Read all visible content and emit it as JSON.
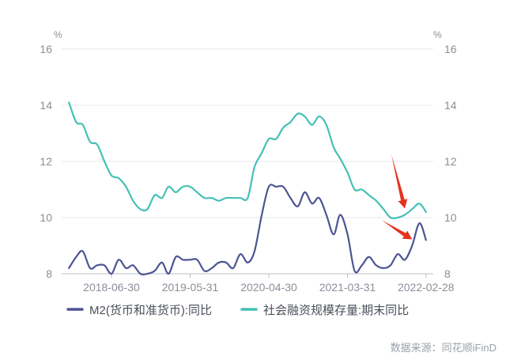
{
  "chart_data": {
    "type": "line",
    "y_unit_left": "%",
    "y_unit_right": "%",
    "ylim": [
      8,
      16
    ],
    "yticks": [
      8,
      10,
      12,
      14,
      16
    ],
    "xlim": [
      "2017-11-30",
      "2022-03-31"
    ],
    "xticks": [
      "2018-06-30",
      "2019-05-31",
      "2020-04-30",
      "2021-03-31",
      "2022-02-28"
    ],
    "grid": "horizontal",
    "legend_position": "bottom",
    "series": [
      {
        "name": "M2(货币和准货币):同比",
        "color": "#4e5594",
        "x": [
          "2017-12-31",
          "2018-01-31",
          "2018-02-28",
          "2018-03-31",
          "2018-04-30",
          "2018-05-31",
          "2018-06-30",
          "2018-07-31",
          "2018-08-31",
          "2018-09-30",
          "2018-10-31",
          "2018-11-30",
          "2018-12-31",
          "2019-01-31",
          "2019-02-28",
          "2019-03-31",
          "2019-04-30",
          "2019-05-31",
          "2019-06-30",
          "2019-07-31",
          "2019-08-31",
          "2019-09-30",
          "2019-10-31",
          "2019-11-30",
          "2019-12-31",
          "2020-01-31",
          "2020-02-29",
          "2020-03-31",
          "2020-04-30",
          "2020-05-31",
          "2020-06-30",
          "2020-07-31",
          "2020-08-31",
          "2020-09-30",
          "2020-10-31",
          "2020-11-30",
          "2020-12-31",
          "2021-01-31",
          "2021-02-28",
          "2021-03-31",
          "2021-04-30",
          "2021-05-31",
          "2021-06-30",
          "2021-07-31",
          "2021-08-31",
          "2021-09-30",
          "2021-10-31",
          "2021-11-30",
          "2021-12-31",
          "2022-01-31",
          "2022-02-28"
        ],
        "values": [
          8.2,
          8.6,
          8.8,
          8.2,
          8.3,
          8.3,
          8.0,
          8.5,
          8.2,
          8.3,
          8.0,
          8.0,
          8.1,
          8.4,
          8.0,
          8.6,
          8.5,
          8.5,
          8.5,
          8.1,
          8.2,
          8.4,
          8.4,
          8.2,
          8.7,
          8.4,
          8.8,
          10.1,
          11.1,
          11.1,
          11.1,
          10.7,
          10.4,
          10.9,
          10.5,
          10.7,
          10.1,
          9.4,
          10.1,
          9.4,
          8.1,
          8.3,
          8.6,
          8.3,
          8.2,
          8.3,
          8.7,
          8.5,
          9.0,
          9.8,
          9.2
        ]
      },
      {
        "name": "社会融资规模存量:期末同比",
        "color": "#45c0b6",
        "x": [
          "2017-12-31",
          "2018-01-31",
          "2018-02-28",
          "2018-03-31",
          "2018-04-30",
          "2018-05-31",
          "2018-06-30",
          "2018-07-31",
          "2018-08-31",
          "2018-09-30",
          "2018-10-31",
          "2018-11-30",
          "2018-12-31",
          "2019-01-31",
          "2019-02-28",
          "2019-03-31",
          "2019-04-30",
          "2019-05-31",
          "2019-06-30",
          "2019-07-31",
          "2019-08-31",
          "2019-09-30",
          "2019-10-31",
          "2019-11-30",
          "2019-12-31",
          "2020-01-31",
          "2020-02-29",
          "2020-03-31",
          "2020-04-30",
          "2020-05-31",
          "2020-06-30",
          "2020-07-31",
          "2020-08-31",
          "2020-09-30",
          "2020-10-31",
          "2020-11-30",
          "2020-12-31",
          "2021-01-31",
          "2021-02-28",
          "2021-03-31",
          "2021-04-30",
          "2021-05-31",
          "2021-06-30",
          "2021-07-31",
          "2021-08-31",
          "2021-09-30",
          "2021-10-31",
          "2021-11-30",
          "2021-12-31",
          "2022-01-31",
          "2022-02-28"
        ],
        "values": [
          14.1,
          13.4,
          13.3,
          12.7,
          12.6,
          12.0,
          11.5,
          11.4,
          11.1,
          10.6,
          10.3,
          10.3,
          10.8,
          10.7,
          11.1,
          10.9,
          11.1,
          11.1,
          10.9,
          10.7,
          10.7,
          10.6,
          10.7,
          10.7,
          10.7,
          10.7,
          11.8,
          12.3,
          12.8,
          12.8,
          13.2,
          13.4,
          13.7,
          13.6,
          13.3,
          13.6,
          13.3,
          12.5,
          12.1,
          11.6,
          11.0,
          11.0,
          10.8,
          10.6,
          10.3,
          10.0,
          10.0,
          10.1,
          10.3,
          10.5,
          10.2
        ]
      }
    ],
    "annotations": [
      {
        "type": "arrow",
        "color": "#e5331f",
        "points_to": {
          "series": "社会融资规模存量:期末同比",
          "x": "2021-11-30"
        }
      },
      {
        "type": "arrow",
        "color": "#e5331f",
        "points_to": {
          "series": "M2(货币和准货币):同比",
          "x": "2021-12-31"
        }
      }
    ]
  },
  "footer": {
    "source": "数据来源：同花顺iFinD"
  }
}
